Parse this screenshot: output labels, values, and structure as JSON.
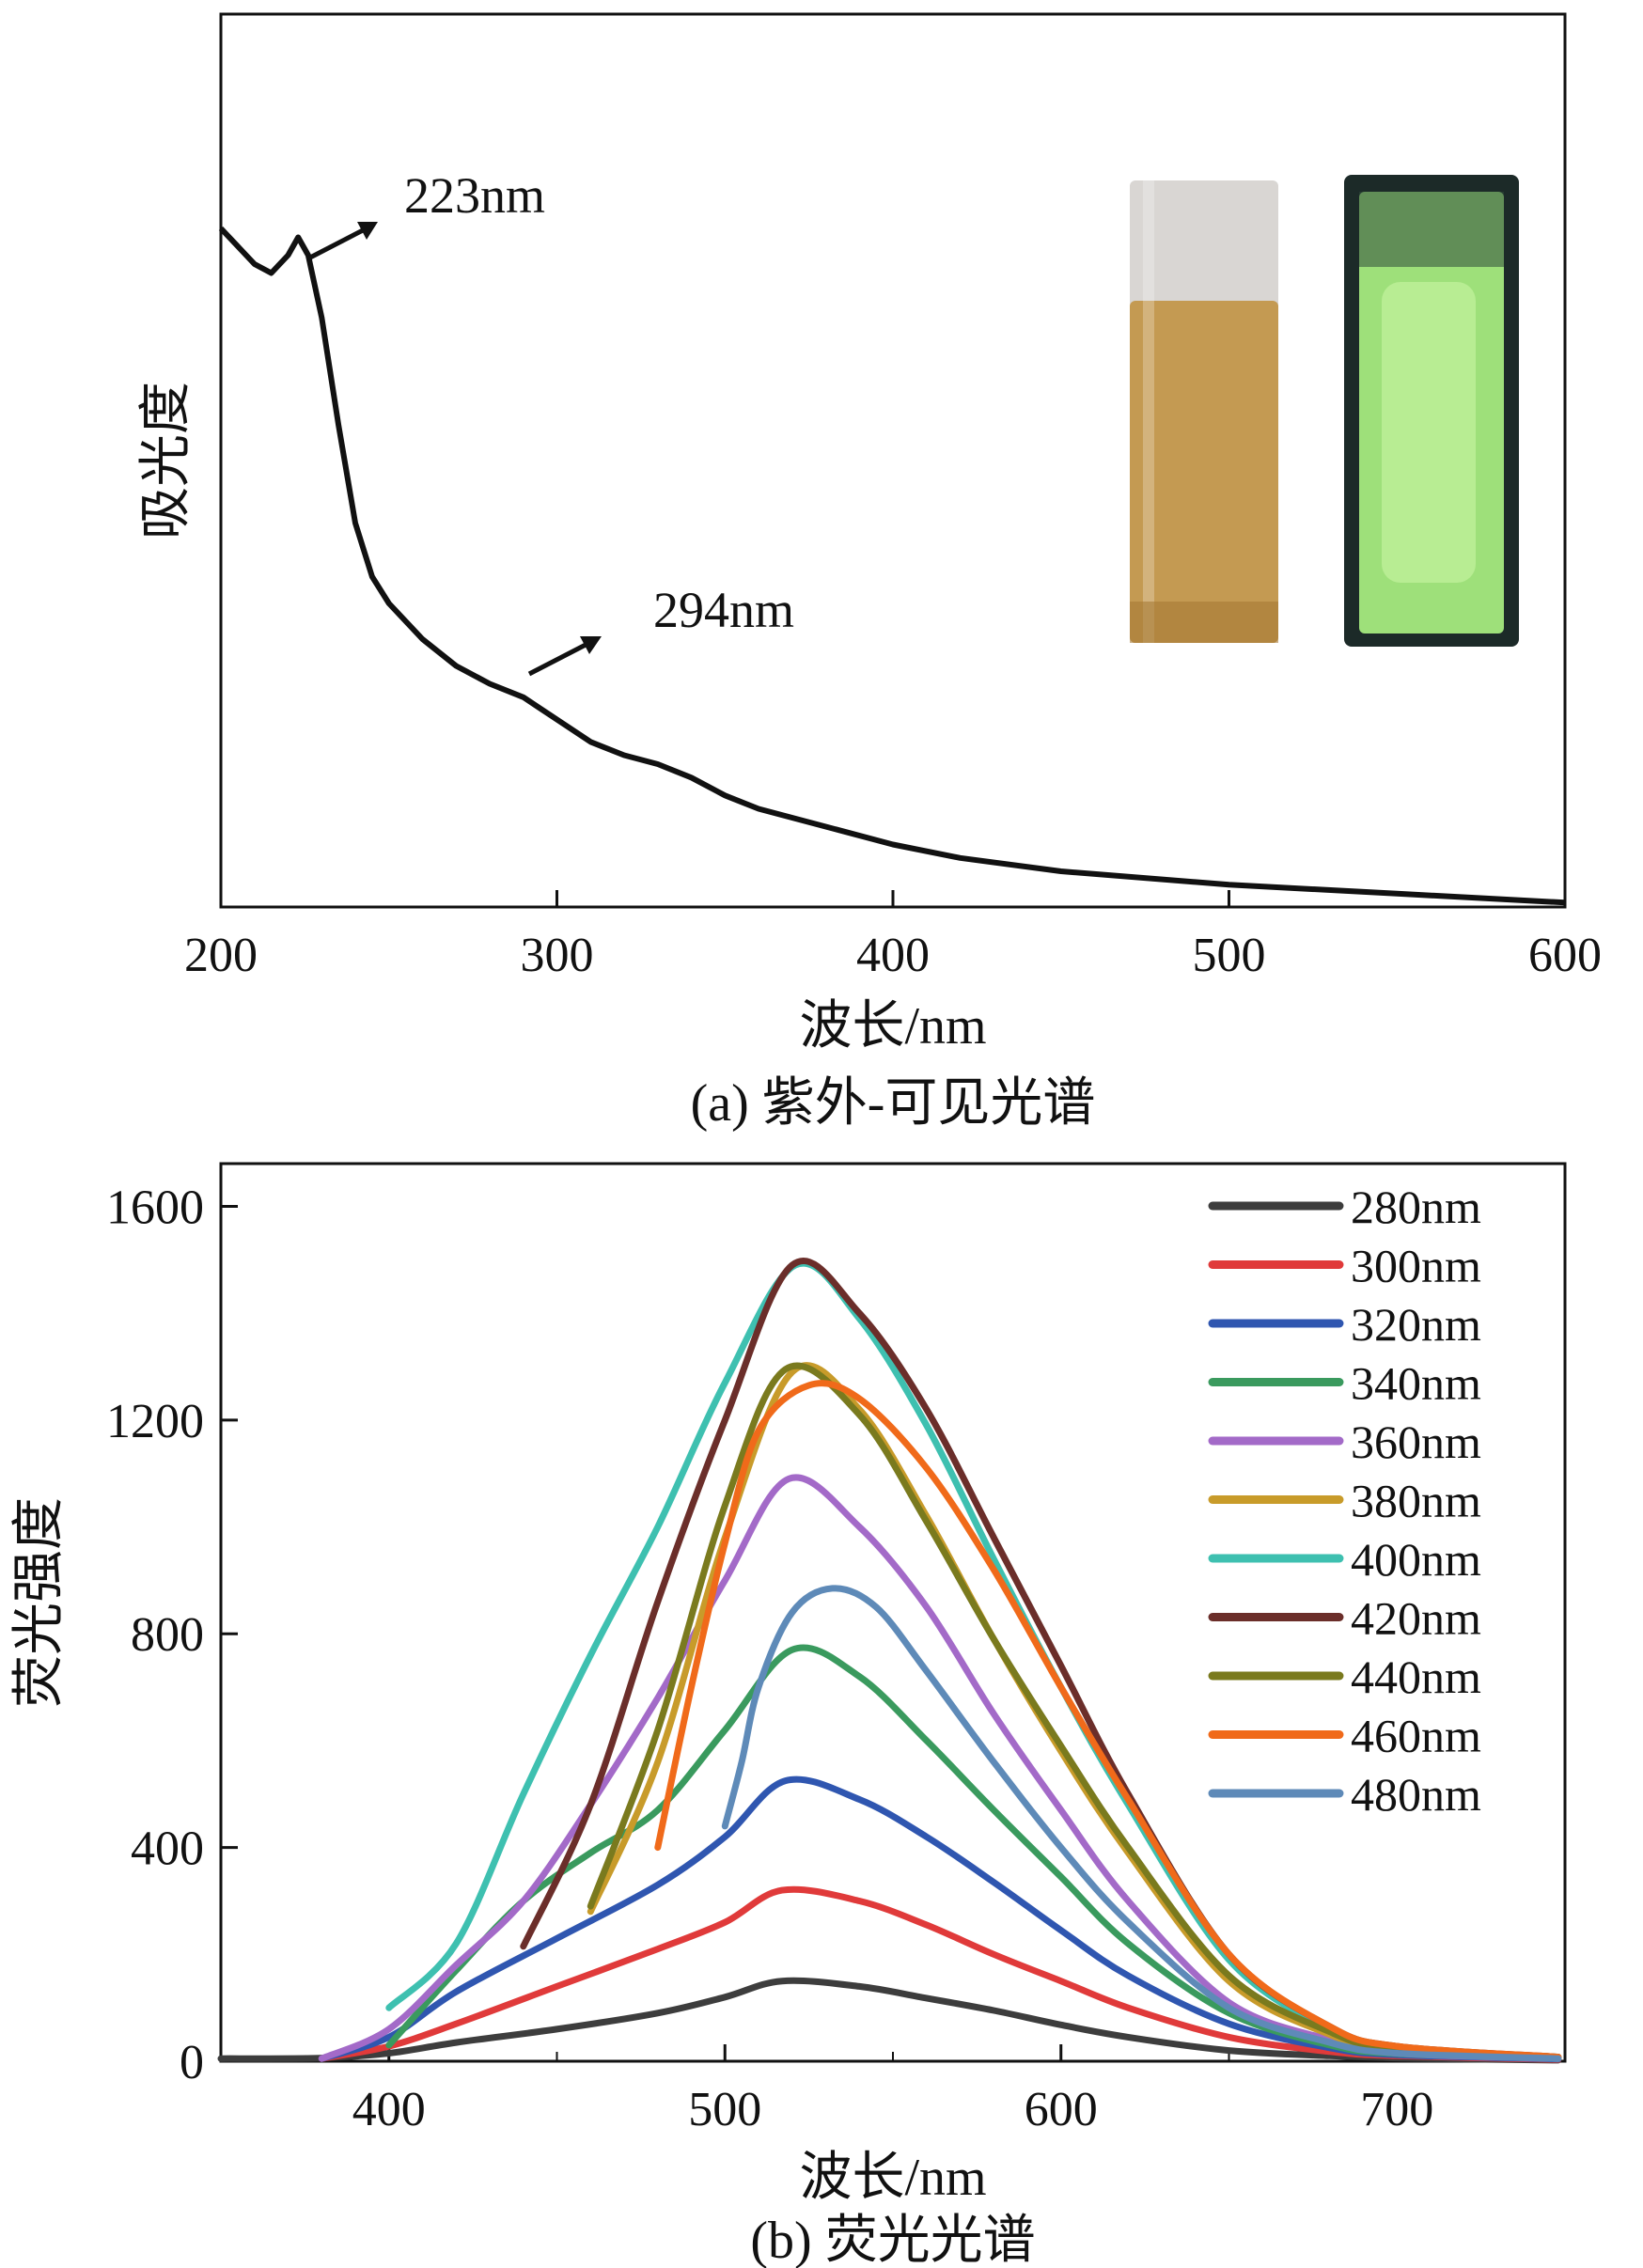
{
  "chart_data": [
    {
      "type": "line",
      "title": "",
      "caption": "(a) 紫外-可见光谱",
      "xlabel": "波长/nm",
      "ylabel": "吸光度",
      "xlim": [
        200,
        600
      ],
      "ylim": [
        0,
        1.0
      ],
      "yticks_shown": false,
      "xticks": [
        200,
        300,
        400,
        500,
        600
      ],
      "grid": false,
      "series": [
        {
          "name": "absorbance",
          "color": "#111111",
          "x": [
            200,
            205,
            210,
            215,
            220,
            223,
            226,
            230,
            235,
            240,
            245,
            250,
            260,
            270,
            280,
            290,
            294,
            300,
            310,
            320,
            330,
            340,
            350,
            360,
            380,
            400,
            420,
            450,
            500,
            550,
            600
          ],
          "y": [
            0.76,
            0.74,
            0.72,
            0.71,
            0.73,
            0.75,
            0.73,
            0.66,
            0.54,
            0.43,
            0.37,
            0.34,
            0.3,
            0.27,
            0.25,
            0.235,
            0.225,
            0.21,
            0.185,
            0.17,
            0.16,
            0.145,
            0.125,
            0.11,
            0.09,
            0.07,
            0.055,
            0.04,
            0.025,
            0.015,
            0.005
          ]
        }
      ],
      "annotations": [
        {
          "text": "223nm",
          "x": 223,
          "y": 0.75
        },
        {
          "text": "294nm",
          "x": 294,
          "y": 0.225
        }
      ],
      "inset_photos": [
        {
          "name": "vial-daylight",
          "liquid_color": "#c49a52"
        },
        {
          "name": "vial-uv-fluorescence",
          "liquid_color": "#9ee07a"
        }
      ]
    },
    {
      "type": "line",
      "title": "",
      "caption": "(b) 荧光光谱",
      "xlabel": "波长/nm",
      "ylabel": "荧光强度",
      "xlim": [
        350,
        750
      ],
      "ylim": [
        0,
        1680
      ],
      "xticks": [
        400,
        500,
        600,
        700
      ],
      "yticks": [
        0,
        400,
        800,
        1200,
        1600
      ],
      "grid": false,
      "legend_position": "top-right",
      "series": [
        {
          "name": "280nm",
          "color": "#3d3d3d",
          "x": [
            350,
            380,
            400,
            420,
            450,
            480,
            500,
            517,
            540,
            560,
            580,
            600,
            620,
            650,
            680,
            700,
            720,
            748
          ],
          "y": [
            5,
            6,
            15,
            35,
            60,
            90,
            120,
            150,
            140,
            118,
            95,
            68,
            45,
            20,
            10,
            6,
            4,
            2
          ]
        },
        {
          "name": "300nm",
          "color": "#e03a3a",
          "x": [
            380,
            400,
            420,
            450,
            480,
            500,
            517,
            540,
            560,
            580,
            600,
            620,
            650,
            680,
            700,
            748
          ],
          "y": [
            5,
            28,
            70,
            140,
            210,
            260,
            320,
            300,
            255,
            200,
            150,
            100,
            45,
            18,
            10,
            3
          ]
        },
        {
          "name": "320nm",
          "color": "#2f56b0",
          "x": [
            380,
            400,
            420,
            450,
            480,
            500,
            518,
            540,
            560,
            580,
            600,
            620,
            650,
            680,
            700,
            748
          ],
          "y": [
            5,
            45,
            130,
            230,
            330,
            420,
            525,
            490,
            420,
            335,
            245,
            160,
            70,
            25,
            12,
            4
          ]
        },
        {
          "name": "340nm",
          "color": "#3a9a5e",
          "x": [
            400,
            420,
            440,
            460,
            480,
            500,
            520,
            540,
            560,
            580,
            600,
            620,
            650,
            680,
            700,
            748
          ],
          "y": [
            30,
            170,
            300,
            390,
            470,
            620,
            770,
            720,
            600,
            470,
            345,
            220,
            90,
            30,
            14,
            5
          ]
        },
        {
          "name": "360nm",
          "color": "#a36ac8",
          "x": [
            380,
            400,
            420,
            440,
            460,
            480,
            500,
            519,
            540,
            560,
            580,
            600,
            620,
            650,
            680,
            700,
            748
          ],
          "y": [
            5,
            60,
            180,
            300,
            480,
            680,
            900,
            1090,
            1000,
            850,
            650,
            470,
            300,
            110,
            40,
            15,
            5
          ]
        },
        {
          "name": "380nm",
          "color": "#c89b2a",
          "x": [
            460,
            480,
            500,
            520,
            540,
            560,
            580,
            600,
            620,
            650,
            680,
            700,
            748
          ],
          "y": [
            280,
            560,
            980,
            1290,
            1220,
            1020,
            790,
            580,
            390,
            150,
            50,
            20,
            6
          ]
        },
        {
          "name": "400nm",
          "color": "#3ec0b0",
          "x": [
            400,
            420,
            440,
            460,
            480,
            500,
            521,
            540,
            560,
            580,
            600,
            620,
            650,
            680,
            700,
            748
          ],
          "y": [
            100,
            220,
            500,
            760,
            1000,
            1270,
            1490,
            1390,
            1190,
            940,
            700,
            480,
            190,
            60,
            25,
            8
          ]
        },
        {
          "name": "420nm",
          "color": "#6b2e2a",
          "x": [
            440,
            460,
            480,
            500,
            520,
            540,
            560,
            580,
            600,
            620,
            650,
            680,
            700,
            748
          ],
          "y": [
            215,
            480,
            860,
            1200,
            1490,
            1400,
            1220,
            980,
            740,
            500,
            200,
            65,
            28,
            8
          ]
        },
        {
          "name": "440nm",
          "color": "#7a7a1e",
          "x": [
            460,
            480,
            500,
            518,
            540,
            560,
            580,
            600,
            620,
            650,
            680,
            700,
            748
          ],
          "y": [
            290,
            620,
            1040,
            1295,
            1210,
            1010,
            790,
            590,
            400,
            160,
            55,
            22,
            6
          ]
        },
        {
          "name": "460nm",
          "color": "#f06a1a",
          "x": [
            480,
            490,
            500,
            510,
            525,
            540,
            560,
            580,
            600,
            620,
            650,
            680,
            700,
            748
          ],
          "y": [
            400,
            700,
            970,
            1180,
            1265,
            1240,
            1110,
            920,
            700,
            490,
            200,
            65,
            28,
            8
          ]
        },
        {
          "name": "480nm",
          "color": "#5e8ab8",
          "x": [
            500,
            505,
            510,
            520,
            532,
            545,
            560,
            580,
            600,
            620,
            650,
            680,
            700,
            748
          ],
          "y": [
            440,
            560,
            700,
            840,
            885,
            850,
            730,
            560,
            400,
            260,
            100,
            35,
            15,
            5
          ]
        }
      ]
    }
  ]
}
